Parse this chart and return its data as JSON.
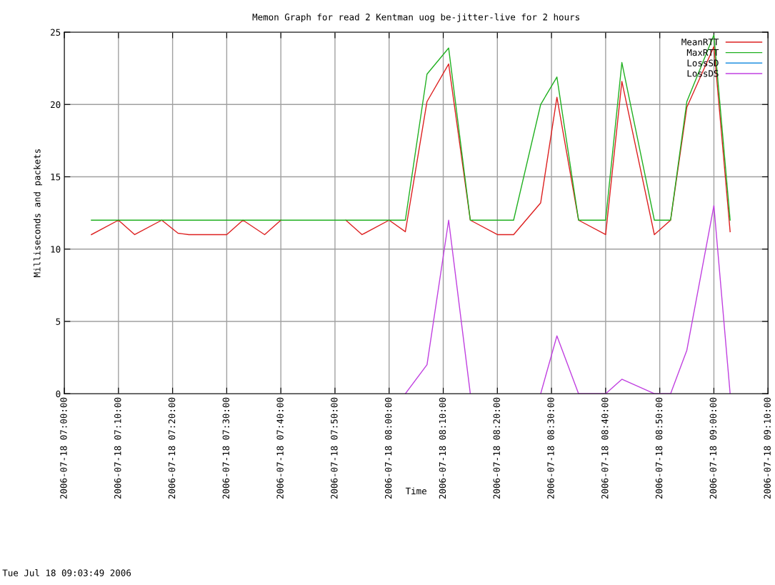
{
  "chart_data": {
    "type": "line",
    "title": "Memon Graph for read 2 Kentman uog be-jitter-live for 2 hours",
    "xlabel": "Time",
    "ylabel": "Milliseconds and packets",
    "annotations": [
      "Tue Jul 18 09:03:49 2006"
    ],
    "x": [
      "2006-07-18T07:05",
      "2006-07-18T07:10",
      "2006-07-18T07:13",
      "2006-07-18T07:18",
      "2006-07-18T07:21",
      "2006-07-18T07:23",
      "2006-07-18T07:30",
      "2006-07-18T07:33",
      "2006-07-18T07:37",
      "2006-07-18T07:40",
      "2006-07-18T07:46",
      "2006-07-18T07:52",
      "2006-07-18T07:55",
      "2006-07-18T08:00",
      "2006-07-18T08:03",
      "2006-07-18T08:07",
      "2006-07-18T08:11",
      "2006-07-18T08:15",
      "2006-07-18T08:20",
      "2006-07-18T08:23",
      "2006-07-18T08:28",
      "2006-07-18T08:31",
      "2006-07-18T08:35",
      "2006-07-18T08:40",
      "2006-07-18T08:43",
      "2006-07-18T08:49",
      "2006-07-18T08:52",
      "2006-07-18T08:55",
      "2006-07-18T09:00",
      "2006-07-18T09:03"
    ],
    "series": [
      {
        "name": "MeanRTT",
        "color": "#dd2020",
        "values": [
          11,
          12,
          11,
          12,
          11.1,
          11,
          11,
          12,
          11,
          12,
          null,
          12,
          11,
          12,
          11.2,
          20.2,
          22.8,
          12,
          11,
          11,
          13.2,
          20.5,
          12,
          11,
          21.6,
          11,
          12,
          19.8,
          24,
          11.2
        ]
      },
      {
        "name": "MaxRTT",
        "color": "#20b020",
        "values": [
          12,
          12,
          12,
          12,
          12,
          12,
          12,
          12,
          12,
          12,
          12,
          12,
          12,
          12,
          12,
          22.1,
          23.9,
          12,
          12,
          12,
          20,
          21.9,
          12,
          12,
          22.9,
          12,
          12,
          20.2,
          24.8,
          12
        ]
      },
      {
        "name": "LossSD",
        "color": "#2090e0",
        "values": [
          null,
          null,
          null,
          null,
          null,
          null,
          null,
          null,
          null,
          null,
          null,
          null,
          null,
          null,
          null,
          null,
          null,
          null,
          null,
          null,
          null,
          null,
          null,
          null,
          null,
          null,
          null,
          null,
          null,
          null
        ]
      },
      {
        "name": "LossDS",
        "color": "#c040e0",
        "values": [
          null,
          null,
          null,
          null,
          null,
          null,
          null,
          null,
          null,
          null,
          null,
          null,
          null,
          null,
          0,
          2,
          12,
          0,
          null,
          null,
          0,
          4,
          0,
          0,
          1,
          0,
          0,
          3,
          13,
          0
        ]
      }
    ],
    "xlim": [
      "2006-07-18T07:00",
      "2006-07-18T09:10"
    ],
    "xticks": [
      {
        "value": "2006-07-18T07:00",
        "label": "2006-07-18 07:00:00"
      },
      {
        "value": "2006-07-18T07:10",
        "label": "2006-07-18 07:10:00"
      },
      {
        "value": "2006-07-18T07:20",
        "label": "2006-07-18 07:20:00"
      },
      {
        "value": "2006-07-18T07:30",
        "label": "2006-07-18 07:30:00"
      },
      {
        "value": "2006-07-18T07:40",
        "label": "2006-07-18 07:40:00"
      },
      {
        "value": "2006-07-18T07:50",
        "label": "2006-07-18 07:50:00"
      },
      {
        "value": "2006-07-18T08:00",
        "label": "2006-07-18 08:00:00"
      },
      {
        "value": "2006-07-18T08:10",
        "label": "2006-07-18 08:10:00"
      },
      {
        "value": "2006-07-18T08:20",
        "label": "2006-07-18 08:20:00"
      },
      {
        "value": "2006-07-18T08:30",
        "label": "2006-07-18 08:30:00"
      },
      {
        "value": "2006-07-18T08:40",
        "label": "2006-07-18 08:40:00"
      },
      {
        "value": "2006-07-18T08:50",
        "label": "2006-07-18 08:50:00"
      },
      {
        "value": "2006-07-18T09:00",
        "label": "2006-07-18 09:00:00"
      },
      {
        "value": "2006-07-18T09:10",
        "label": "2006-07-18 09:10:00"
      }
    ],
    "ylim": [
      0,
      25
    ],
    "yticks": [
      0,
      5,
      10,
      15,
      20,
      25
    ],
    "grid": true,
    "legend": "top right",
    "marker": "none",
    "line_style": "solid"
  }
}
